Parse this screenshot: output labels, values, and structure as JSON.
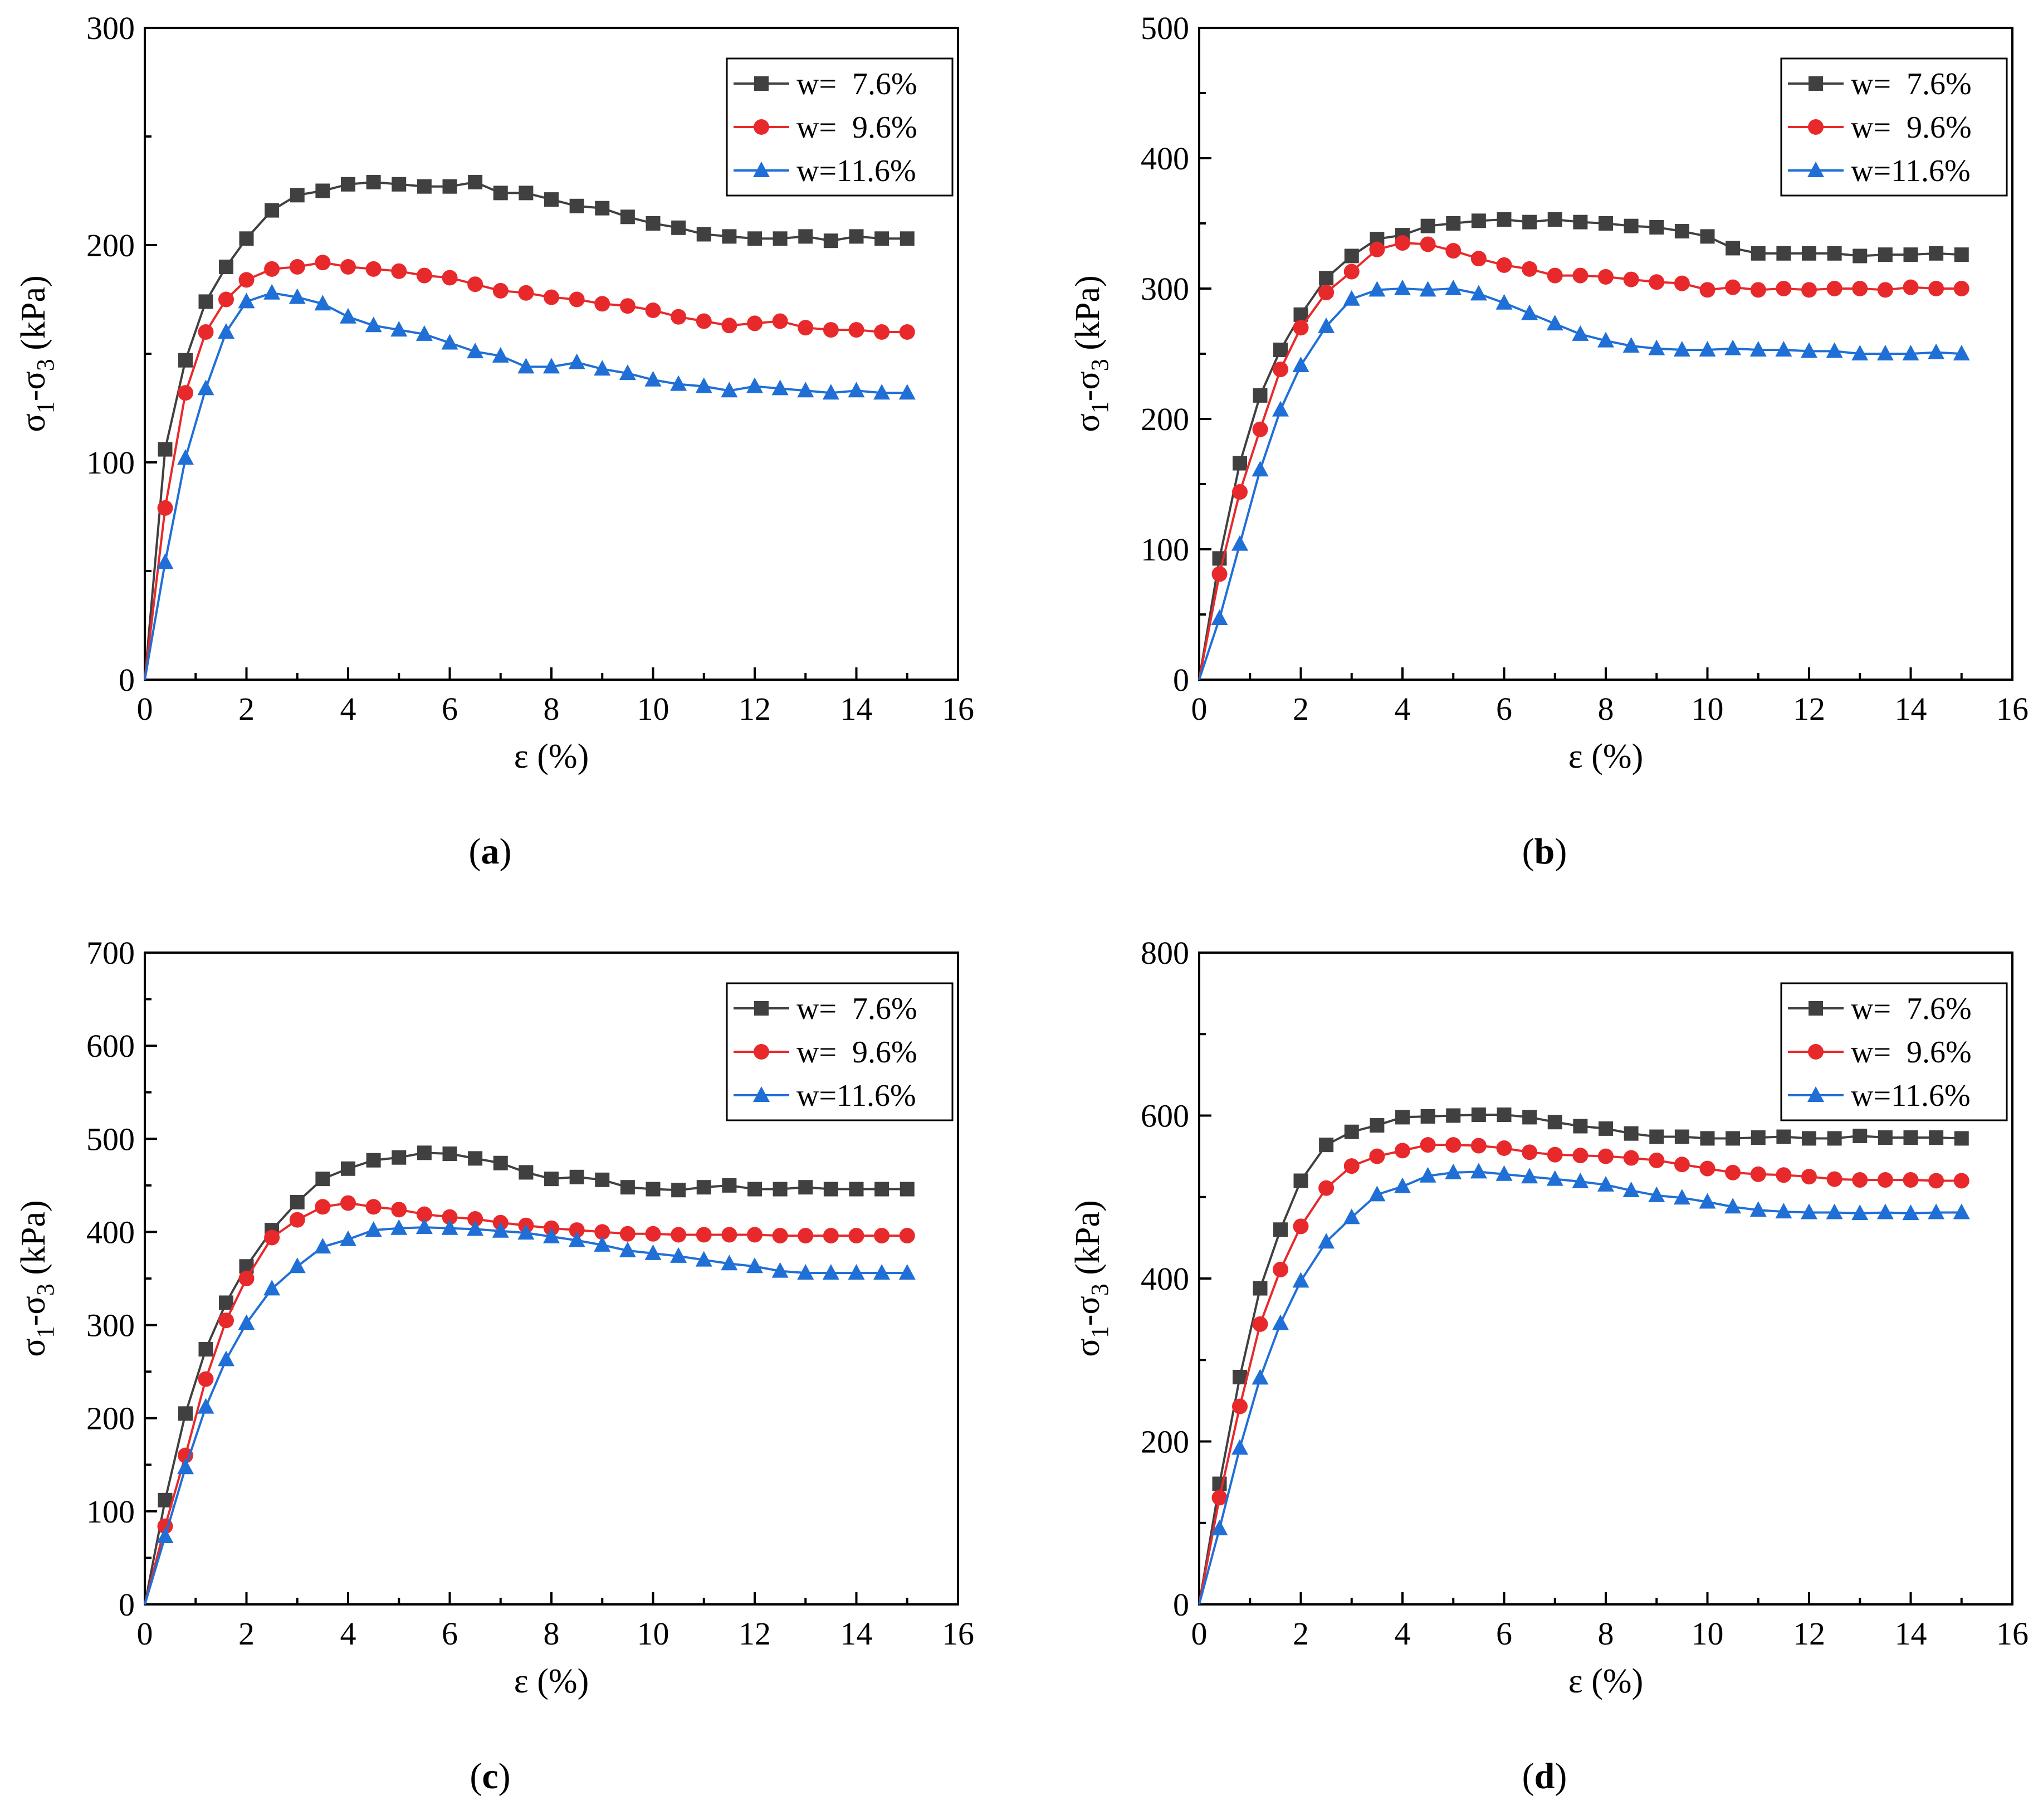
{
  "figure": {
    "panels": [
      "(a)",
      "(b)",
      "(c)",
      "(d)"
    ]
  },
  "chart_data": [
    {
      "panel": "a",
      "panel_letter": "a",
      "type": "line",
      "title": "",
      "xlabel": "ε (%)",
      "ylabel_main": "σ",
      "ylabel_sub1": "1",
      "ylabel_mid": "-σ",
      "ylabel_sub3": "3",
      "ylabel_tail": " (kPa)",
      "xlim": [
        0,
        16
      ],
      "ylim": [
        0,
        300
      ],
      "xticks": [
        0,
        2,
        4,
        6,
        8,
        10,
        12,
        14,
        16
      ],
      "yticks": [
        0,
        100,
        200,
        300
      ],
      "legend_position": "top-right",
      "x": [
        0,
        0.4,
        0.8,
        1.2,
        1.6,
        2.0,
        2.5,
        3.0,
        3.5,
        4.0,
        4.5,
        5.0,
        5.5,
        6.0,
        6.5,
        7.0,
        7.5,
        8.0,
        8.5,
        9.0,
        9.5,
        10.0,
        10.5,
        11.0,
        11.5,
        12.0,
        12.5,
        13.0,
        13.5,
        14.0,
        14.5,
        15.0
      ],
      "series": [
        {
          "name": "w=  7.6%",
          "color": "#404040",
          "marker": "square",
          "values": [
            0,
            106,
            147,
            174,
            190,
            203,
            216,
            223,
            225,
            228,
            229,
            228,
            227,
            227,
            229,
            224,
            224,
            221,
            218,
            217,
            213,
            210,
            208,
            205,
            204,
            203,
            203,
            204,
            202,
            204,
            203,
            203
          ]
        },
        {
          "name": "w=  9.6%",
          "color": "#e8292b",
          "marker": "circle",
          "values": [
            0,
            79,
            132,
            160,
            175,
            184,
            189,
            190,
            192,
            190,
            189,
            188,
            186,
            185,
            182,
            179,
            178,
            176,
            175,
            173,
            172,
            170,
            167,
            165,
            163,
            164,
            165,
            162,
            161,
            161,
            160,
            160
          ]
        },
        {
          "name": "w=11.6%",
          "color": "#1f6fd6",
          "marker": "triangle",
          "values": [
            0,
            54,
            102,
            134,
            160,
            174,
            178,
            176,
            173,
            167,
            163,
            161,
            159,
            155,
            151,
            149,
            144,
            144,
            146,
            143,
            141,
            138,
            136,
            135,
            133,
            135,
            134,
            133,
            132,
            133,
            132,
            132
          ]
        }
      ]
    },
    {
      "panel": "b",
      "panel_letter": "b",
      "type": "line",
      "title": "",
      "xlabel": "ε (%)",
      "ylabel_main": "σ",
      "ylabel_sub1": "1",
      "ylabel_mid": "-σ",
      "ylabel_sub3": "3",
      "ylabel_tail": " (kPa)",
      "xlim": [
        0,
        16
      ],
      "ylim": [
        0,
        500
      ],
      "xticks": [
        0,
        2,
        4,
        6,
        8,
        10,
        12,
        14,
        16
      ],
      "yticks": [
        0,
        100,
        200,
        300,
        400,
        500
      ],
      "legend_position": "top-right",
      "x": [
        0,
        0.4,
        0.8,
        1.2,
        1.6,
        2.0,
        2.5,
        3.0,
        3.5,
        4.0,
        4.5,
        5.0,
        5.5,
        6.0,
        6.5,
        7.0,
        7.5,
        8.0,
        8.5,
        9.0,
        9.5,
        10.0,
        10.5,
        11.0,
        11.5,
        12.0,
        12.5,
        13.0,
        13.5,
        14.0,
        14.5,
        15.0
      ],
      "series": [
        {
          "name": "w=  7.6%",
          "color": "#404040",
          "marker": "square",
          "values": [
            0,
            93,
            166,
            218,
            253,
            280,
            308,
            325,
            338,
            341,
            348,
            350,
            352,
            353,
            351,
            353,
            351,
            350,
            348,
            347,
            344,
            340,
            331,
            327,
            327,
            327,
            327,
            325,
            326,
            326,
            327,
            326
          ]
        },
        {
          "name": "w=  9.6%",
          "color": "#e8292b",
          "marker": "circle",
          "values": [
            0,
            81,
            144,
            192,
            238,
            270,
            297,
            313,
            330,
            335,
            334,
            329,
            323,
            318,
            315,
            310,
            310,
            309,
            307,
            305,
            304,
            299,
            301,
            299,
            300,
            299,
            300,
            300,
            299,
            301,
            300,
            300
          ]
        },
        {
          "name": "w=11.6%",
          "color": "#1f6fd6",
          "marker": "triangle",
          "values": [
            0,
            47,
            104,
            161,
            207,
            241,
            271,
            292,
            299,
            300,
            299,
            300,
            296,
            289,
            281,
            273,
            265,
            260,
            256,
            254,
            253,
            253,
            254,
            253,
            253,
            252,
            252,
            250,
            250,
            250,
            251,
            250
          ]
        }
      ]
    },
    {
      "panel": "c",
      "panel_letter": "c",
      "type": "line",
      "title": "",
      "xlabel": "ε (%)",
      "ylabel_main": "σ",
      "ylabel_sub1": "1",
      "ylabel_mid": "-σ",
      "ylabel_sub3": "3",
      "ylabel_tail": " (kPa)",
      "xlim": [
        0,
        16
      ],
      "ylim": [
        0,
        700
      ],
      "xticks": [
        0,
        2,
        4,
        6,
        8,
        10,
        12,
        14,
        16
      ],
      "yticks": [
        0,
        100,
        200,
        300,
        400,
        500,
        600,
        700
      ],
      "legend_position": "top-right",
      "x": [
        0,
        0.4,
        0.8,
        1.2,
        1.6,
        2.0,
        2.5,
        3.0,
        3.5,
        4.0,
        4.5,
        5.0,
        5.5,
        6.0,
        6.5,
        7.0,
        7.5,
        8.0,
        8.5,
        9.0,
        9.5,
        10.0,
        10.5,
        11.0,
        11.5,
        12.0,
        12.5,
        13.0,
        13.5,
        14.0,
        14.5,
        15.0
      ],
      "series": [
        {
          "name": "w=  7.6%",
          "color": "#404040",
          "marker": "square",
          "values": [
            0,
            112,
            205,
            274,
            324,
            363,
            402,
            432,
            457,
            468,
            477,
            480,
            485,
            484,
            479,
            474,
            464,
            457,
            459,
            456,
            448,
            446,
            445,
            448,
            450,
            446,
            446,
            448,
            446,
            446,
            446,
            446
          ]
        },
        {
          "name": "w=  9.6%",
          "color": "#e8292b",
          "marker": "circle",
          "values": [
            0,
            84,
            160,
            242,
            305,
            350,
            394,
            413,
            427,
            431,
            427,
            424,
            419,
            416,
            414,
            410,
            407,
            404,
            402,
            400,
            398,
            398,
            397,
            397,
            397,
            397,
            396,
            396,
            396,
            396,
            396,
            396
          ]
        },
        {
          "name": "w=11.6%",
          "color": "#1f6fd6",
          "marker": "triangle",
          "values": [
            0,
            73,
            147,
            212,
            263,
            302,
            339,
            363,
            384,
            392,
            402,
            404,
            405,
            404,
            403,
            401,
            399,
            395,
            391,
            386,
            380,
            377,
            374,
            370,
            366,
            363,
            358,
            356,
            356,
            356,
            356,
            356
          ]
        }
      ]
    },
    {
      "panel": "d",
      "panel_letter": "d",
      "type": "line",
      "title": "",
      "xlabel": "ε (%)",
      "ylabel_main": "σ",
      "ylabel_sub1": "1",
      "ylabel_mid": "-σ",
      "ylabel_sub3": "3",
      "ylabel_tail": " (kPa)",
      "xlim": [
        0,
        16
      ],
      "ylim": [
        0,
        800
      ],
      "xticks": [
        0,
        2,
        4,
        6,
        8,
        10,
        12,
        14,
        16
      ],
      "yticks": [
        0,
        200,
        400,
        600,
        800
      ],
      "legend_position": "top-right",
      "x": [
        0,
        0.4,
        0.8,
        1.2,
        1.6,
        2.0,
        2.5,
        3.0,
        3.5,
        4.0,
        4.5,
        5.0,
        5.5,
        6.0,
        6.5,
        7.0,
        7.5,
        8.0,
        8.5,
        9.0,
        9.5,
        10.0,
        10.5,
        11.0,
        11.5,
        12.0,
        12.5,
        13.0,
        13.5,
        14.0,
        14.5,
        15.0
      ],
      "series": [
        {
          "name": "w=  7.6%",
          "color": "#404040",
          "marker": "square",
          "values": [
            0,
            148,
            279,
            388,
            460,
            520,
            564,
            580,
            588,
            598,
            599,
            600,
            601,
            601,
            598,
            592,
            587,
            584,
            578,
            574,
            574,
            572,
            572,
            573,
            574,
            572,
            572,
            575,
            573,
            573,
            573,
            572
          ]
        },
        {
          "name": "w=  9.6%",
          "color": "#e8292b",
          "marker": "circle",
          "values": [
            0,
            131,
            243,
            344,
            411,
            464,
            511,
            538,
            550,
            557,
            564,
            564,
            563,
            560,
            555,
            552,
            551,
            550,
            548,
            545,
            540,
            535,
            530,
            528,
            527,
            525,
            522,
            521,
            521,
            521,
            520,
            520
          ]
        },
        {
          "name": "w=11.6%",
          "color": "#1f6fd6",
          "marker": "triangle",
          "values": [
            0,
            93,
            192,
            278,
            345,
            397,
            445,
            475,
            503,
            513,
            526,
            530,
            531,
            528,
            525,
            522,
            519,
            515,
            508,
            502,
            499,
            494,
            488,
            484,
            482,
            481,
            481,
            480,
            481,
            480,
            481,
            481
          ]
        }
      ]
    }
  ]
}
